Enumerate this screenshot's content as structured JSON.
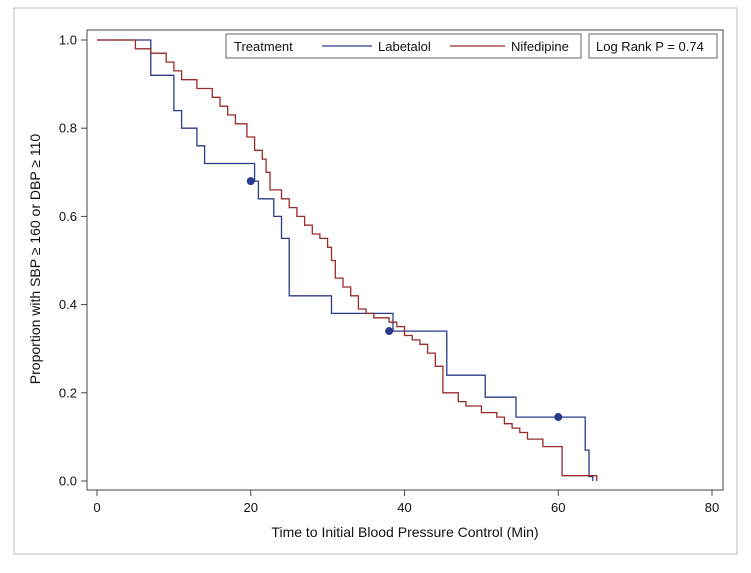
{
  "chart_data": {
    "type": "line",
    "subtype": "kaplan-meier step",
    "title": "",
    "xlabel": "Time to Initial Blood Pressure Control (Min)",
    "ylabel": "Proportion with SBP ≥ 160 or DBP ≥ 110",
    "xlim": [
      0,
      80
    ],
    "ylim": [
      0,
      1
    ],
    "x_ticks": [
      "0",
      "20",
      "40",
      "60",
      "80"
    ],
    "y_ticks": [
      "0.0",
      "0.2",
      "0.4",
      "0.6",
      "0.8",
      "1.0"
    ],
    "grid": false,
    "legend": {
      "placement": "top",
      "title": "Treatment",
      "annotation": "Log Rank P =  0.74"
    },
    "series": [
      {
        "name": "Labetalol",
        "color": "#2b3a8a",
        "steps": [
          [
            0,
            1.0
          ],
          [
            7,
            0.92
          ],
          [
            10,
            0.84
          ],
          [
            11,
            0.8
          ],
          [
            12,
            0.8
          ],
          [
            13,
            0.76
          ],
          [
            14,
            0.72
          ],
          [
            20,
            0.72
          ],
          [
            20.5,
            0.68
          ],
          [
            21,
            0.64
          ],
          [
            23,
            0.6
          ],
          [
            24,
            0.55
          ],
          [
            25,
            0.42
          ],
          [
            30,
            0.42
          ],
          [
            30.5,
            0.38
          ],
          [
            38,
            0.38
          ],
          [
            38.5,
            0.34
          ],
          [
            45,
            0.34
          ],
          [
            45.5,
            0.24
          ],
          [
            50,
            0.24
          ],
          [
            50.5,
            0.19
          ],
          [
            54,
            0.19
          ],
          [
            54.5,
            0.145
          ],
          [
            63,
            0.145
          ],
          [
            63.5,
            0.07
          ],
          [
            64,
            0.01
          ],
          [
            64.5,
            0.0
          ]
        ],
        "censored": [
          [
            20,
            0.68
          ],
          [
            38,
            0.34
          ],
          [
            60,
            0.145
          ]
        ]
      },
      {
        "name": "Nifedipine",
        "color": "#9b2a2a",
        "steps": [
          [
            0,
            1.0
          ],
          [
            5,
            0.98
          ],
          [
            7,
            0.97
          ],
          [
            9,
            0.95
          ],
          [
            10,
            0.93
          ],
          [
            11,
            0.91
          ],
          [
            13,
            0.89
          ],
          [
            15,
            0.87
          ],
          [
            16,
            0.85
          ],
          [
            17,
            0.83
          ],
          [
            18,
            0.81
          ],
          [
            19.5,
            0.78
          ],
          [
            20.5,
            0.75
          ],
          [
            21.5,
            0.73
          ],
          [
            22,
            0.7
          ],
          [
            22.5,
            0.66
          ],
          [
            24,
            0.64
          ],
          [
            25,
            0.62
          ],
          [
            26,
            0.6
          ],
          [
            27,
            0.58
          ],
          [
            28,
            0.56
          ],
          [
            29,
            0.55
          ],
          [
            30,
            0.53
          ],
          [
            30.5,
            0.5
          ],
          [
            31,
            0.46
          ],
          [
            32,
            0.44
          ],
          [
            33,
            0.42
          ],
          [
            34,
            0.39
          ],
          [
            35,
            0.38
          ],
          [
            36,
            0.37
          ],
          [
            38,
            0.36
          ],
          [
            39,
            0.35
          ],
          [
            40,
            0.33
          ],
          [
            41,
            0.32
          ],
          [
            42,
            0.31
          ],
          [
            43,
            0.29
          ],
          [
            44,
            0.26
          ],
          [
            45,
            0.2
          ],
          [
            47,
            0.18
          ],
          [
            48,
            0.17
          ],
          [
            50,
            0.155
          ],
          [
            52,
            0.145
          ],
          [
            53,
            0.13
          ],
          [
            54,
            0.12
          ],
          [
            55,
            0.11
          ],
          [
            56,
            0.095
          ],
          [
            58,
            0.078
          ],
          [
            60,
            0.078
          ],
          [
            60.5,
            0.012
          ],
          [
            64.5,
            0.012
          ],
          [
            65,
            0.0
          ]
        ],
        "censored": []
      }
    ]
  }
}
